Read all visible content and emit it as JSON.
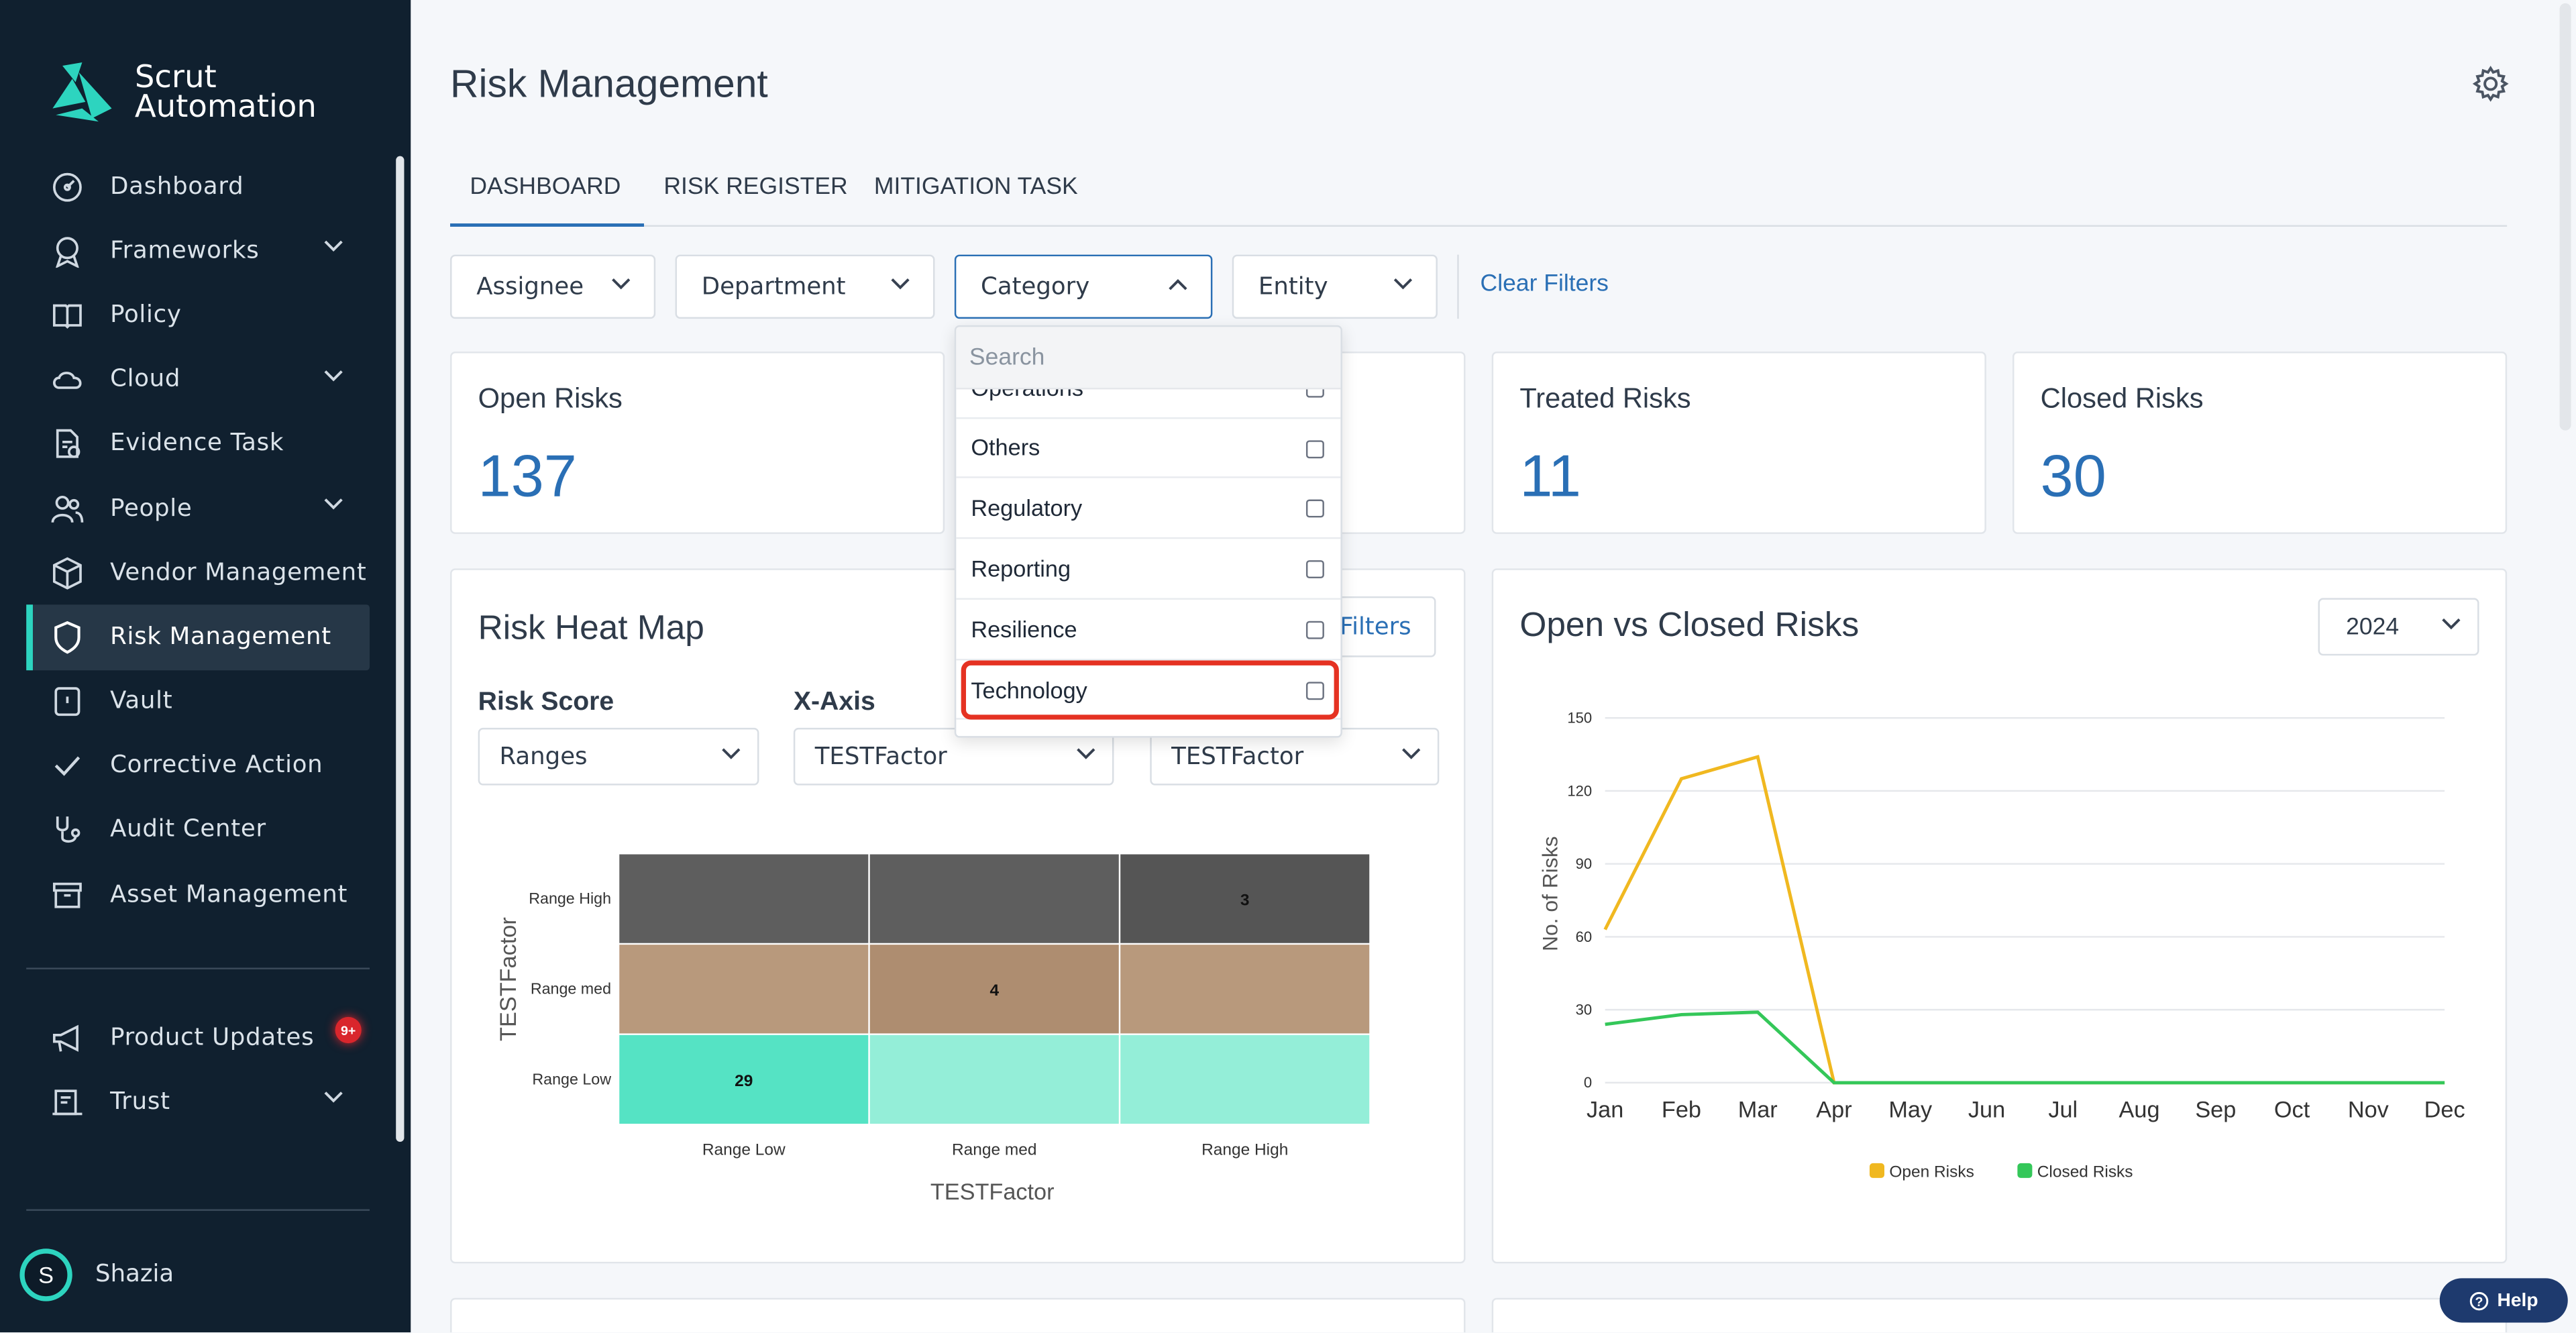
{
  "app": {
    "logo_line1": "Scrut",
    "logo_line2": "Automation"
  },
  "sidebar": {
    "items": [
      {
        "label": "Dashboard",
        "icon": "dashboard-icon",
        "expandable": false
      },
      {
        "label": "Frameworks",
        "icon": "award-icon",
        "expandable": true
      },
      {
        "label": "Policy",
        "icon": "book-icon",
        "expandable": false
      },
      {
        "label": "Cloud",
        "icon": "cloud-icon",
        "expandable": true
      },
      {
        "label": "Evidence Task",
        "icon": "document-check-icon",
        "expandable": false
      },
      {
        "label": "People",
        "icon": "people-icon",
        "expandable": true
      },
      {
        "label": "Vendor Management",
        "icon": "cube-icon",
        "expandable": false
      },
      {
        "label": "Risk Management",
        "icon": "shield-icon",
        "expandable": false,
        "active": true
      },
      {
        "label": "Vault",
        "icon": "vault-icon",
        "expandable": false
      },
      {
        "label": "Corrective Action",
        "icon": "check-icon",
        "expandable": false
      },
      {
        "label": "Audit Center",
        "icon": "stethoscope-icon",
        "expandable": false
      },
      {
        "label": "Asset Management",
        "icon": "archive-icon",
        "expandable": false
      }
    ],
    "bottom_items": [
      {
        "label": "Product Updates",
        "icon": "megaphone-icon",
        "badge": "9+"
      },
      {
        "label": "Trust",
        "icon": "trust-icon",
        "expandable": true
      }
    ],
    "user": {
      "initial": "S",
      "name": "Shazia"
    }
  },
  "header": {
    "title": "Risk Management"
  },
  "tabs": [
    {
      "label": "DASHBOARD",
      "active": true
    },
    {
      "label": "RISK REGISTER"
    },
    {
      "label": "MITIGATION TASK"
    }
  ],
  "filters": {
    "assignee": "Assignee",
    "department": "Department",
    "category": "Category",
    "entity": "Entity",
    "clear": "Clear Filters"
  },
  "category_dropdown": {
    "search_placeholder": "Search",
    "items": [
      "Operations",
      "Others",
      "Regulatory",
      "Reporting",
      "Resilience",
      "Technology"
    ],
    "highlighted": "Technology"
  },
  "stats": {
    "open": {
      "label": "Open Risks",
      "value": "137"
    },
    "treated": {
      "label": "Treated Risks",
      "value": "11"
    },
    "closed": {
      "label": "Closed Risks",
      "value": "30"
    }
  },
  "heatmap": {
    "title": "Risk Heat Map",
    "filters_btn": "Filters",
    "risk_score_label": "Risk Score",
    "risk_score_value": "Ranges",
    "x_axis_label": "X-Axis",
    "x_axis_value": "TESTFactor",
    "y_axis_value": "TESTFactor"
  },
  "line_chart": {
    "title": "Open vs Closed Risks",
    "year": "2024"
  },
  "help": {
    "label": "Help"
  },
  "colors": {
    "accent": "#2a6fb5",
    "teal": "#2dd4bf",
    "open_line": "#f0b820",
    "closed_line": "#34c759"
  },
  "chart_data": [
    {
      "type": "heatmap",
      "x_categories": [
        "Range Low",
        "Range med",
        "Range High"
      ],
      "y_categories": [
        "Range High",
        "Range med",
        "Range Low"
      ],
      "xlabel": "TESTFactor",
      "ylabel": "TESTFactor",
      "cells": [
        {
          "x": "Range Low",
          "y": "Range High",
          "value": null,
          "color": "#5e5e5e"
        },
        {
          "x": "Range med",
          "y": "Range High",
          "value": null,
          "color": "#5e5e5e"
        },
        {
          "x": "Range High",
          "y": "Range High",
          "value": 3,
          "color": "#555555"
        },
        {
          "x": "Range Low",
          "y": "Range med",
          "value": null,
          "color": "#b8997c"
        },
        {
          "x": "Range med",
          "y": "Range med",
          "value": 4,
          "color": "#ae8d70"
        },
        {
          "x": "Range High",
          "y": "Range med",
          "value": null,
          "color": "#b8997c"
        },
        {
          "x": "Range Low",
          "y": "Range Low",
          "value": 29,
          "color": "#55e3c4"
        },
        {
          "x": "Range med",
          "y": "Range Low",
          "value": null,
          "color": "#94eed8"
        },
        {
          "x": "Range High",
          "y": "Range Low",
          "value": null,
          "color": "#94eed8"
        }
      ]
    },
    {
      "type": "line",
      "x": [
        "Jan",
        "Feb",
        "Mar",
        "Apr",
        "May",
        "Jun",
        "Jul",
        "Aug",
        "Sep",
        "Oct",
        "Nov",
        "Dec"
      ],
      "ylabel": "No. of Risks",
      "ylim": [
        0,
        150
      ],
      "yticks": [
        0,
        30,
        60,
        90,
        120,
        150
      ],
      "grid": true,
      "legend": "bottom",
      "series": [
        {
          "name": "Open Risks",
          "color": "#f0b820",
          "values": [
            63,
            125,
            134,
            0,
            0,
            0,
            0,
            0,
            0,
            0,
            0,
            0
          ]
        },
        {
          "name": "Closed Risks",
          "color": "#34c759",
          "values": [
            24,
            28,
            29,
            0,
            0,
            0,
            0,
            0,
            0,
            0,
            0,
            0
          ]
        }
      ]
    }
  ]
}
